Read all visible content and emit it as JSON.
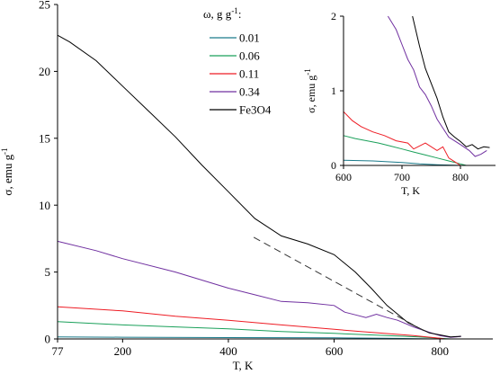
{
  "chart_data": [
    {
      "type": "line",
      "xlabel": "T, K",
      "ylabel": "σ, emu g",
      "ylabel_sup": "-1",
      "xlim": [
        77,
        900
      ],
      "ylim": [
        0,
        25
      ],
      "xticks": [
        77,
        200,
        400,
        600,
        800
      ],
      "xtick_labels": [
        "77",
        "200",
        "400",
        "600",
        "800"
      ],
      "yticks": [
        0,
        5,
        10,
        15,
        20,
        25
      ],
      "ytick_labels": [
        "0",
        "5",
        "10",
        "15",
        "20",
        "25"
      ],
      "grid": false,
      "legend": {
        "placement": "top-center",
        "title": "ω, g g",
        "title_sup": "-1",
        "title_suffix": ":"
      },
      "series": [
        {
          "name": "0.01",
          "color": "#1a7a8a",
          "x": [
            77,
            200,
            400,
            600,
            700,
            760,
            800
          ],
          "y": [
            0.15,
            0.13,
            0.1,
            0.08,
            0.05,
            0.02,
            0.0
          ]
        },
        {
          "name": "0.06",
          "color": "#1aa05a",
          "x": [
            77,
            200,
            300,
            400,
            500,
            600,
            700,
            760,
            800,
            820
          ],
          "y": [
            1.3,
            1.05,
            0.9,
            0.75,
            0.55,
            0.42,
            0.25,
            0.15,
            0.05,
            0.0
          ]
        },
        {
          "name": "0.11",
          "color": "#ee1c24",
          "x": [
            77,
            200,
            300,
            400,
            500,
            600,
            650,
            700,
            750,
            800,
            810
          ],
          "y": [
            2.4,
            2.1,
            1.7,
            1.4,
            1.05,
            0.72,
            0.55,
            0.4,
            0.25,
            0.05,
            0.0
          ]
        },
        {
          "name": "0.34",
          "color": "#7030a0",
          "x": [
            77,
            150,
            200,
            300,
            400,
            450,
            500,
            550,
            600,
            620,
            640,
            660,
            680,
            700,
            720,
            750,
            780,
            800,
            820,
            840
          ],
          "y": [
            7.3,
            6.6,
            6.0,
            5.0,
            3.8,
            3.3,
            2.8,
            2.7,
            2.5,
            2.0,
            1.8,
            1.6,
            1.85,
            1.6,
            1.4,
            0.9,
            0.5,
            0.25,
            0.12,
            0.18
          ]
        },
        {
          "name": "Fe3O4",
          "color": "#000000",
          "x": [
            77,
            100,
            150,
            200,
            250,
            300,
            350,
            400,
            450,
            500,
            550,
            600,
            640,
            670,
            700,
            740,
            780,
            800,
            820,
            840
          ],
          "y": [
            22.7,
            22.2,
            20.8,
            18.9,
            17.0,
            15.1,
            13.0,
            11.0,
            9.0,
            7.7,
            7.1,
            6.3,
            5.0,
            3.8,
            2.5,
            1.2,
            0.45,
            0.3,
            0.15,
            0.2
          ]
        }
      ],
      "annotations": [
        {
          "type": "dashed-line",
          "color": "#333333",
          "x": [
            448,
            775
          ],
          "y": [
            7.6,
            0.5
          ]
        }
      ]
    },
    {
      "type": "line",
      "xlabel": "T, K",
      "ylabel": "σ, emu g",
      "ylabel_sup": "-1",
      "xlim": [
        600,
        860
      ],
      "ylim": [
        0,
        2
      ],
      "xticks": [
        600,
        700,
        800
      ],
      "xtick_labels": [
        "600",
        "700",
        "800"
      ],
      "yticks": [
        0,
        1,
        2
      ],
      "ytick_labels": [
        "0",
        "1",
        "2"
      ],
      "grid": false,
      "series": [
        {
          "name": "0.01",
          "color": "#1a7a8a",
          "x": [
            600,
            650,
            700,
            730,
            760,
            800
          ],
          "y": [
            0.07,
            0.06,
            0.04,
            0.02,
            0.01,
            0.0
          ]
        },
        {
          "name": "0.06",
          "color": "#1aa05a",
          "x": [
            600,
            620,
            640,
            660,
            680,
            700,
            720,
            740,
            760,
            780,
            800,
            810
          ],
          "y": [
            0.4,
            0.36,
            0.33,
            0.3,
            0.26,
            0.22,
            0.18,
            0.14,
            0.1,
            0.06,
            0.02,
            0.0
          ]
        },
        {
          "name": "0.11",
          "color": "#ee1c24",
          "x": [
            600,
            615,
            630,
            650,
            670,
            690,
            710,
            720,
            740,
            760,
            770,
            780,
            790,
            800
          ],
          "y": [
            0.72,
            0.6,
            0.52,
            0.45,
            0.4,
            0.33,
            0.3,
            0.22,
            0.3,
            0.2,
            0.25,
            0.1,
            0.05,
            0.0
          ]
        },
        {
          "name": "0.34",
          "color": "#7030a0",
          "x": [
            676,
            690,
            700,
            710,
            720,
            730,
            740,
            750,
            760,
            770,
            780,
            800,
            815,
            825,
            835,
            845
          ],
          "y": [
            2.0,
            1.82,
            1.62,
            1.42,
            1.28,
            1.05,
            0.95,
            0.8,
            0.62,
            0.5,
            0.38,
            0.28,
            0.2,
            0.12,
            0.15,
            0.2
          ]
        },
        {
          "name": "Fe3O4",
          "color": "#000000",
          "x": [
            718,
            730,
            740,
            750,
            760,
            770,
            780,
            790,
            800,
            810,
            820,
            830,
            840,
            850
          ],
          "y": [
            2.0,
            1.6,
            1.3,
            1.1,
            0.9,
            0.65,
            0.45,
            0.38,
            0.32,
            0.25,
            0.28,
            0.22,
            0.25,
            0.24
          ]
        }
      ]
    }
  ]
}
